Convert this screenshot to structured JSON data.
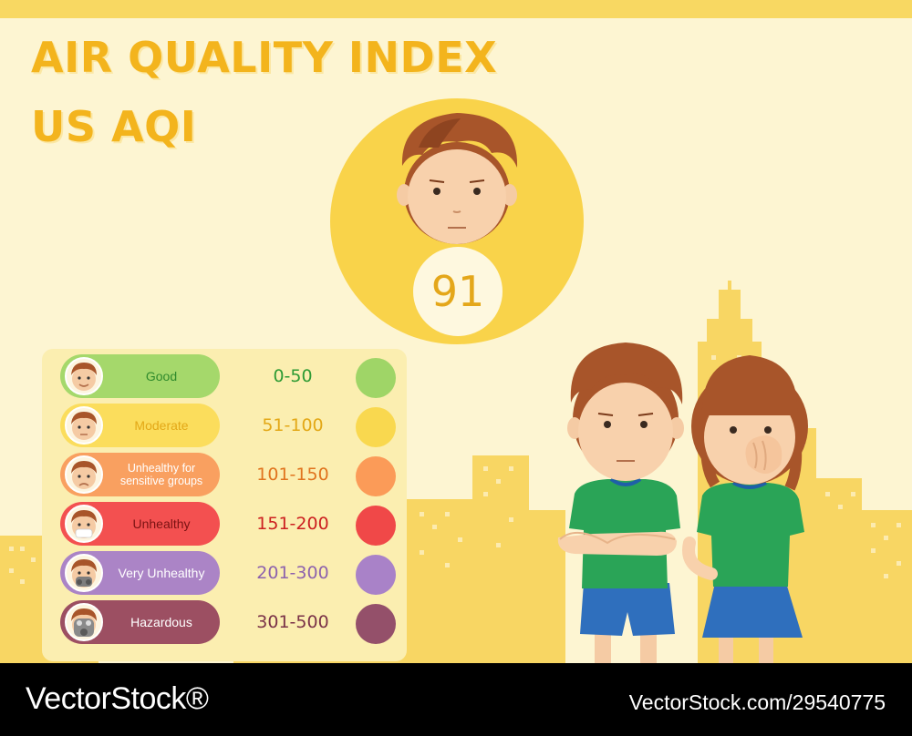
{
  "title": {
    "line1": "AIR QUALITY INDEX",
    "line2": "US AQI"
  },
  "current": {
    "value": "91",
    "color": "#f9d34a"
  },
  "levels": [
    {
      "label": "Good",
      "range": "0-50",
      "pill_color": "#a5d86b",
      "dot_color": "#9fd567",
      "label_color": "#2f8a2c",
      "range_color": "#2e9b34",
      "icon": "face-smile-icon"
    },
    {
      "label": "Moderate",
      "range": "51-100",
      "pill_color": "#fbdd5c",
      "dot_color": "#f9d84f",
      "label_color": "#e3a817",
      "range_color": "#e3a817",
      "icon": "face-neutral-icon"
    },
    {
      "label": "Unhealthy for sensitive groups",
      "range": "101-150",
      "pill_color": "#f9a060",
      "dot_color": "#fb9b58",
      "label_color": "#ffffff",
      "range_color": "#e0741e",
      "icon": "face-sad-icon"
    },
    {
      "label": "Unhealthy",
      "range": "151-200",
      "pill_color": "#f35050",
      "dot_color": "#f04848",
      "label_color": "#7a1212",
      "range_color": "#cc2020",
      "icon": "face-mask-icon"
    },
    {
      "label": "Very Unhealthy",
      "range": "201-300",
      "pill_color": "#ab84c6",
      "dot_color": "#a982c8",
      "label_color": "#ffffff",
      "range_color": "#8d62ad",
      "icon": "gas-mask-icon"
    },
    {
      "label": "Hazardous",
      "range": "301-500",
      "pill_color": "#9c4f62",
      "dot_color": "#94506a",
      "label_color": "#ffffff",
      "range_color": "#7a3248",
      "icon": "respirator-icon"
    }
  ],
  "watermark": {
    "brand": "VectorStock®",
    "id": "VectorStock.com/29540775"
  }
}
